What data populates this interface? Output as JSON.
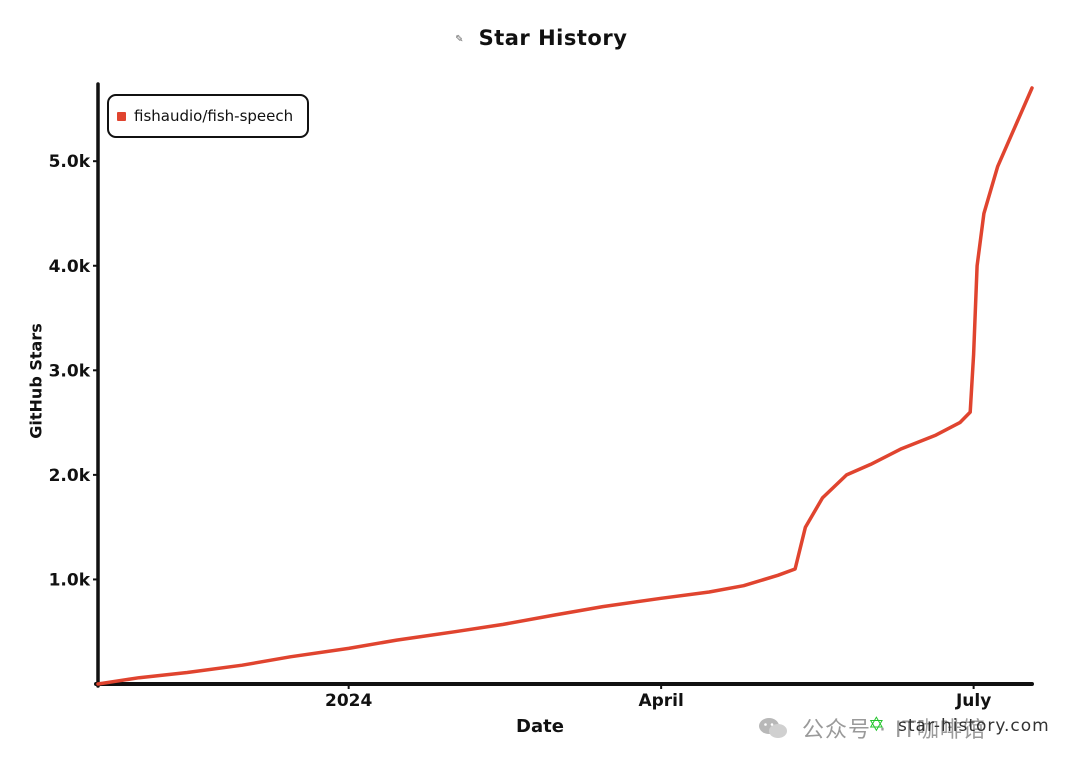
{
  "title": "Star History",
  "logo_icon": "star-history-logo-icon",
  "watermark": {
    "text": "公众号 · IT咖啡馆",
    "site": "star-history.com",
    "wechat_icon": "wechat-icon",
    "star_icon": "green-star-icon"
  },
  "chart_data": {
    "type": "line",
    "title": "Star History",
    "xlabel": "Date",
    "ylabel": "GitHub Stars",
    "x_tick_labels": [
      "2024",
      "April",
      "July"
    ],
    "y_tick_labels": [
      "1.0k",
      "2.0k",
      "3.0k",
      "4.0k",
      "5.0k"
    ],
    "y_ticks": [
      1000,
      2000,
      3000,
      4000,
      5000
    ],
    "ylim": [
      0,
      5700
    ],
    "xlim": [
      "2023-10-20",
      "2024-07-18"
    ],
    "x_ticks": [
      "2024-01-01",
      "2024-04-01",
      "2024-07-01"
    ],
    "legend_position": "top-left",
    "grid": false,
    "series": [
      {
        "name": "fishaudio/fish-speech",
        "color": "#e0442f",
        "points": [
          [
            "2023-10-20",
            0
          ],
          [
            "2023-11-01",
            60
          ],
          [
            "2023-11-15",
            110
          ],
          [
            "2023-12-01",
            180
          ],
          [
            "2023-12-15",
            260
          ],
          [
            "2024-01-01",
            340
          ],
          [
            "2024-01-15",
            420
          ],
          [
            "2024-02-01",
            500
          ],
          [
            "2024-02-15",
            570
          ],
          [
            "2024-03-01",
            660
          ],
          [
            "2024-03-15",
            740
          ],
          [
            "2024-04-01",
            820
          ],
          [
            "2024-04-15",
            880
          ],
          [
            "2024-04-25",
            940
          ],
          [
            "2024-05-05",
            1040
          ],
          [
            "2024-05-10",
            1100
          ],
          [
            "2024-05-13",
            1500
          ],
          [
            "2024-05-18",
            1780
          ],
          [
            "2024-05-25",
            2000
          ],
          [
            "2024-06-01",
            2100
          ],
          [
            "2024-06-10",
            2250
          ],
          [
            "2024-06-20",
            2380
          ],
          [
            "2024-06-27",
            2500
          ],
          [
            "2024-06-30",
            2600
          ],
          [
            "2024-07-01",
            3150
          ],
          [
            "2024-07-02",
            4000
          ],
          [
            "2024-07-04",
            4500
          ],
          [
            "2024-07-08",
            4950
          ],
          [
            "2024-07-12",
            5250
          ],
          [
            "2024-07-18",
            5700
          ]
        ]
      }
    ]
  }
}
